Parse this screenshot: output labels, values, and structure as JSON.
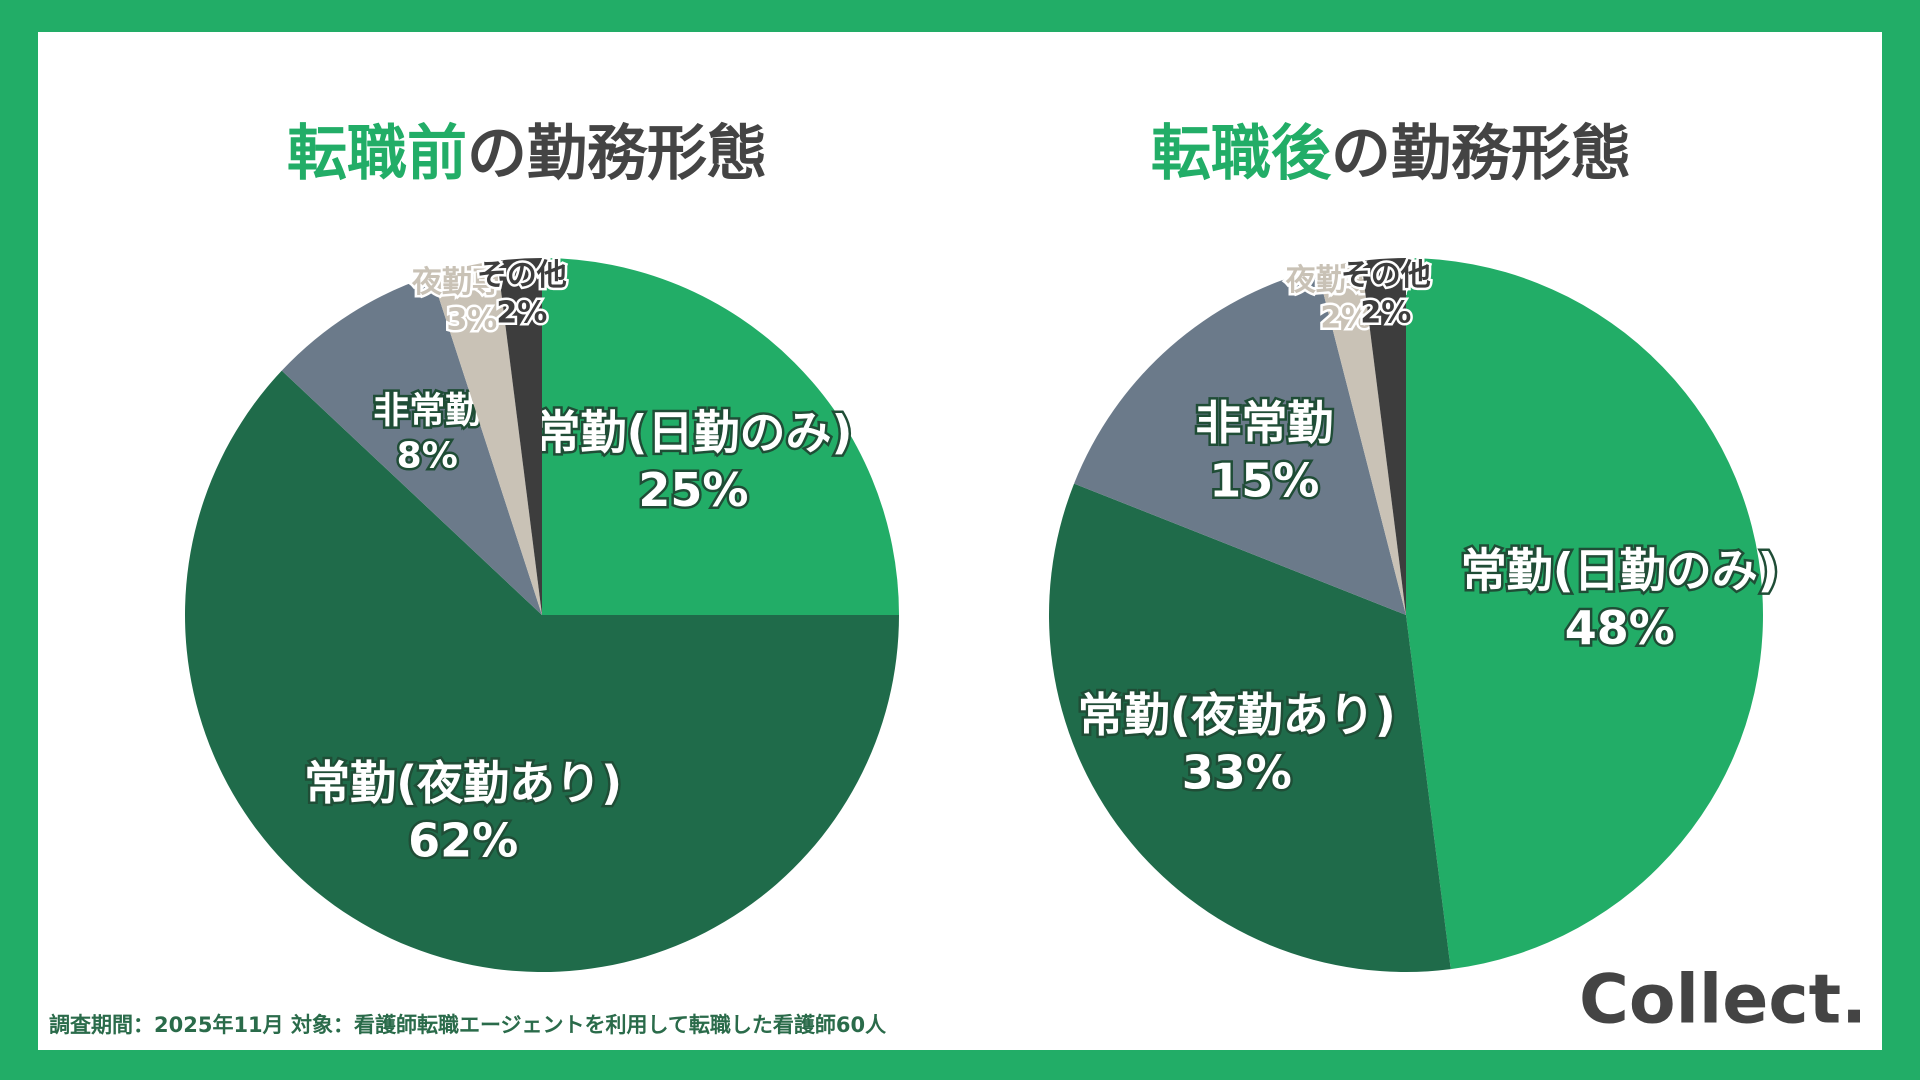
{
  "chart_data": [
    {
      "type": "pie",
      "title_accent": "転職前",
      "title": "の勤務形態",
      "categories": [
        "常勤(日勤のみ)",
        "常勤(夜勤あり)",
        "非常勤",
        "夜勤専従",
        "その他"
      ],
      "values": [
        25,
        62,
        8,
        3,
        2
      ],
      "value_labels": [
        "25%",
        "62%",
        "8%",
        "3%",
        "2%"
      ],
      "colors": [
        "#22ad67",
        "#1f6b4a",
        "#6b7a8a",
        "#c9c2b6",
        "#3d3d3d"
      ]
    },
    {
      "type": "pie",
      "title_accent": "転職後",
      "title": "の勤務形態",
      "categories": [
        "常勤(日勤のみ)",
        "常勤(夜勤あり)",
        "非常勤",
        "夜勤専従",
        "その他"
      ],
      "values": [
        48,
        33,
        15,
        2,
        2
      ],
      "value_labels": [
        "48%",
        "33%",
        "15%",
        "2%",
        "2%"
      ],
      "colors": [
        "#22ad67",
        "#1f6b4a",
        "#6b7a8a",
        "#c9c2b6",
        "#3d3d3d"
      ]
    }
  ],
  "footer": "調査期間：2025年11月  対象：看護師転職エージェントを利用して転職した看護師60人",
  "logo": "Collect."
}
